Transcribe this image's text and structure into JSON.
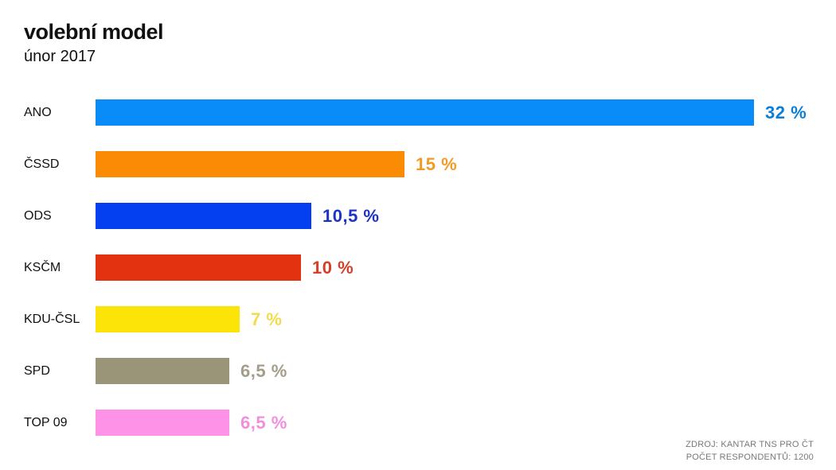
{
  "header": {
    "title": "volební model",
    "subtitle": "únor 2017"
  },
  "chart_data": {
    "type": "bar",
    "orientation": "horizontal",
    "title": "volební model",
    "subtitle": "únor 2017",
    "categories": [
      "ANO",
      "ČSSD",
      "ODS",
      "KSČM",
      "KDU-ČSL",
      "SPD",
      "TOP 09"
    ],
    "values": [
      32,
      15,
      10.5,
      10,
      7,
      6.5,
      6.5
    ],
    "value_labels": [
      "32 %",
      "15 %",
      "10,5 %",
      "10 %",
      "7 %",
      "6,5 %",
      "6,5 %"
    ],
    "bar_colors": [
      "#0a8cf8",
      "#fb8a04",
      "#0540f0",
      "#e23210",
      "#fde408",
      "#9a9478",
      "#fd92e6"
    ],
    "value_label_colors": [
      "#0b7ed8",
      "#f09b26",
      "#1d33c4",
      "#d44027",
      "#f2dc4d",
      "#a39d8a",
      "#f28fdd"
    ],
    "xlim": [
      0,
      32
    ],
    "grid": false,
    "legend": false
  },
  "footer": {
    "source": "ZDROJ: KANTAR TNS PRO ČT",
    "respondents": "POČET RESPONDENTŮ: 1200"
  }
}
